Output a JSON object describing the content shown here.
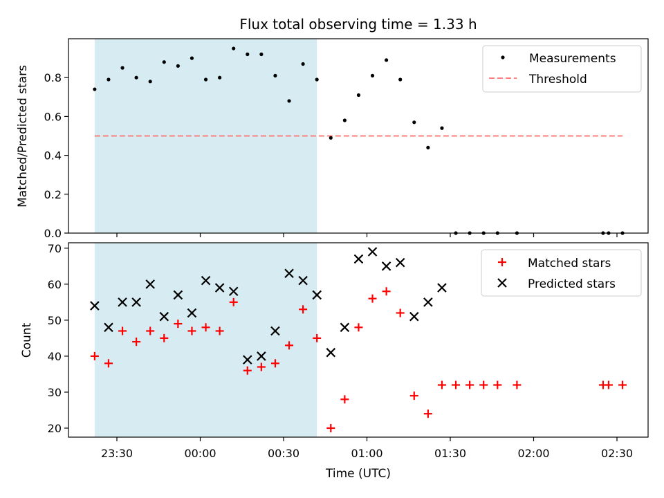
{
  "chart_data": [
    {
      "type": "scatter",
      "title": "Flux total observing time = 1.33 h",
      "xlabel": "",
      "ylabel": "Matched/Predicted stars",
      "ylim": [
        0,
        1.0
      ],
      "yticks": [
        "0.0",
        "0.2",
        "0.4",
        "0.6",
        "0.8"
      ],
      "ytick_values": [
        0,
        0.2,
        0.4,
        0.6,
        0.8
      ],
      "legend_position": "top-right",
      "shaded_region": {
        "x_start": "23:22",
        "x_end": "00:42",
        "color": "#add8e6"
      },
      "series": [
        {
          "name": "Measurements",
          "marker": "dot",
          "color": "#000000",
          "x": [
            "23:22",
            "23:27",
            "23:32",
            "23:37",
            "23:42",
            "23:47",
            "23:52",
            "23:57",
            "00:02",
            "00:07",
            "00:12",
            "00:17",
            "00:22",
            "00:27",
            "00:32",
            "00:37",
            "00:42",
            "00:47",
            "00:52",
            "00:57",
            "01:02",
            "01:07",
            "01:12",
            "01:17",
            "01:22",
            "01:27",
            "01:32",
            "01:37",
            "01:42",
            "01:47",
            "01:54",
            "02:25",
            "02:27",
            "02:32"
          ],
          "y": [
            0.74,
            0.79,
            0.85,
            0.8,
            0.78,
            0.88,
            0.86,
            0.9,
            0.79,
            0.8,
            0.95,
            0.92,
            0.92,
            0.81,
            0.68,
            0.87,
            0.79,
            0.49,
            0.58,
            0.71,
            0.81,
            0.89,
            0.79,
            0.57,
            0.44,
            0.54,
            0.0,
            0.0,
            0.0,
            0.0,
            0.0,
            0.0,
            0.0,
            0.0
          ]
        },
        {
          "name": "Threshold",
          "marker": "dashed-line",
          "color": "#ff7f7f",
          "x": [
            "23:22",
            "02:32"
          ],
          "y": [
            0.5,
            0.5
          ]
        }
      ]
    },
    {
      "type": "scatter",
      "title": "",
      "xlabel": "Time (UTC)",
      "ylabel": "Count",
      "ylim": [
        17.5,
        71.5
      ],
      "yticks": [
        "20",
        "30",
        "40",
        "50",
        "60",
        "70"
      ],
      "ytick_values": [
        20,
        30,
        40,
        50,
        60,
        70
      ],
      "xticks": [
        "23:30",
        "00:00",
        "00:30",
        "01:00",
        "01:30",
        "02:00",
        "02:30"
      ],
      "legend_position": "top-right",
      "shaded_region": {
        "x_start": "23:22",
        "x_end": "00:42",
        "color": "#add8e6"
      },
      "series": [
        {
          "name": "Matched stars",
          "marker": "plus",
          "color": "#ff0000",
          "x": [
            "23:22",
            "23:27",
            "23:32",
            "23:37",
            "23:42",
            "23:47",
            "23:52",
            "23:57",
            "00:02",
            "00:07",
            "00:12",
            "00:17",
            "00:22",
            "00:27",
            "00:32",
            "00:37",
            "00:42",
            "00:47",
            "00:52",
            "00:57",
            "01:02",
            "01:07",
            "01:12",
            "01:17",
            "01:22",
            "01:27",
            "01:32",
            "01:37",
            "01:42",
            "01:47",
            "01:54",
            "02:25",
            "02:27",
            "02:32"
          ],
          "y": [
            40,
            38,
            47,
            44,
            47,
            45,
            49,
            47,
            48,
            47,
            55,
            36,
            37,
            38,
            43,
            53,
            45,
            20,
            28,
            48,
            56,
            58,
            52,
            29,
            24,
            32,
            32,
            32,
            32,
            32,
            32,
            32,
            32,
            32
          ]
        },
        {
          "name": "Predicted stars",
          "marker": "x",
          "color": "#000000",
          "x": [
            "23:22",
            "23:27",
            "23:32",
            "23:37",
            "23:42",
            "23:47",
            "23:52",
            "23:57",
            "00:02",
            "00:07",
            "00:12",
            "00:17",
            "00:22",
            "00:27",
            "00:32",
            "00:37",
            "00:42",
            "00:47",
            "00:52",
            "00:57",
            "01:02",
            "01:07",
            "01:12",
            "01:17",
            "01:22",
            "01:27"
          ],
          "y": [
            54,
            48,
            55,
            55,
            60,
            51,
            57,
            52,
            61,
            59,
            58,
            39,
            40,
            47,
            63,
            61,
            57,
            41,
            48,
            67,
            69,
            65,
            66,
            51,
            55,
            59
          ]
        }
      ]
    }
  ]
}
